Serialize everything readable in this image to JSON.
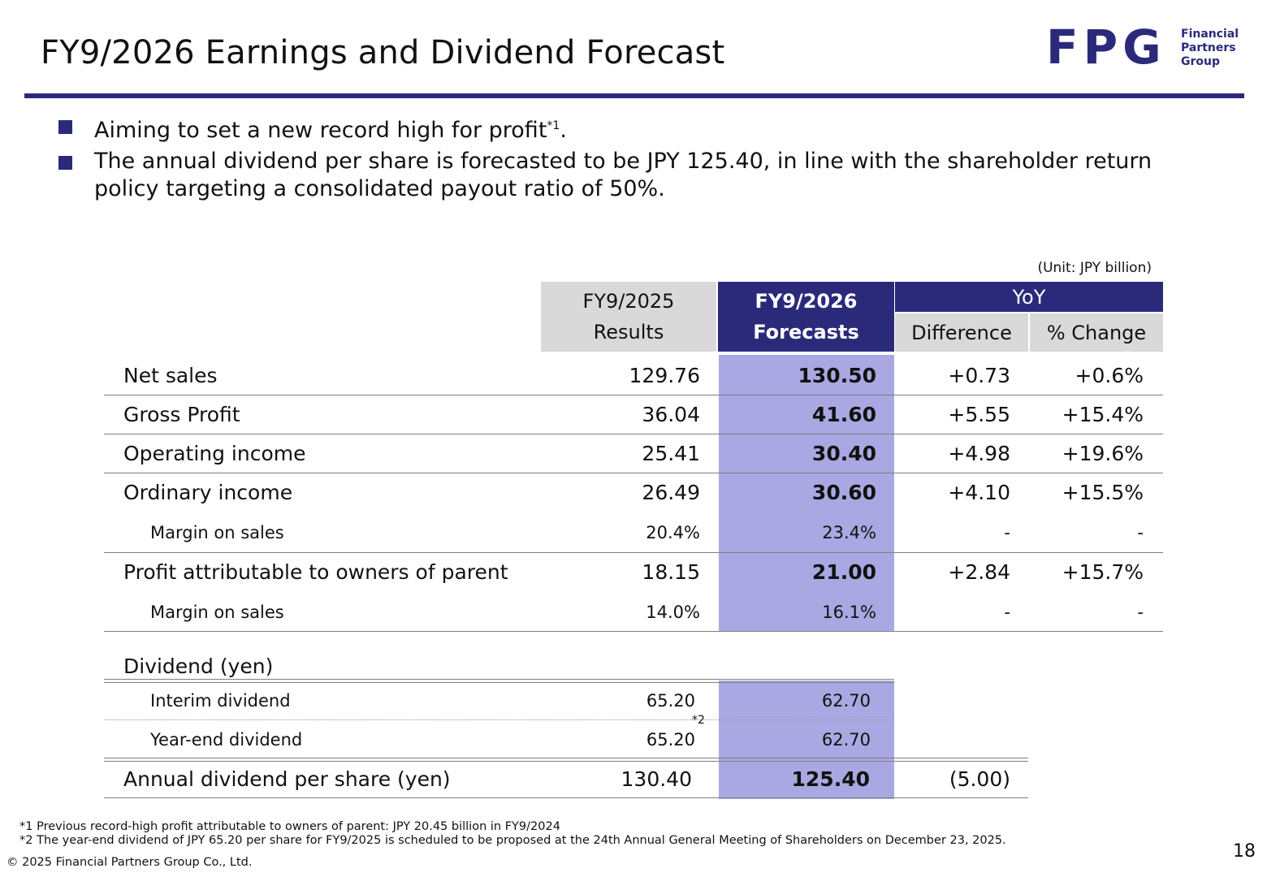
{
  "title": "FY9/2026 Earnings and Dividend Forecast",
  "logo": {
    "mark": "FPG",
    "text_line1": "Financial",
    "text_line2": "Partners",
    "text_line3": "Group"
  },
  "bullets": [
    {
      "text": "Aiming to set a new record high for profit",
      "sup": "*1",
      "tail": "."
    },
    {
      "text": "The annual dividend per share is forecasted to be JPY 125.40, in line with the shareholder return policy targeting a consolidated payout ratio of 50%."
    }
  ],
  "unit": "(Unit: JPY billion)",
  "headers": {
    "prev_line1": "FY9/2025",
    "prev_line2": "Results",
    "fcst_line1": "FY9/2026",
    "fcst_line2": "Forecasts",
    "yoy": "YoY",
    "diff": "Difference",
    "pct": "% Change"
  },
  "rows": [
    {
      "label": "Net sales",
      "prev": "129.76",
      "fcst": "130.50",
      "diff": "+0.73",
      "pct": "+0.6%"
    },
    {
      "label": "Gross Profit",
      "prev": "36.04",
      "fcst": "41.60",
      "diff": "+5.55",
      "pct": "+15.4%"
    },
    {
      "label": "Operating income",
      "prev": "25.41",
      "fcst": "30.40",
      "diff": "+4.98",
      "pct": "+19.6%"
    },
    {
      "label": "Ordinary income",
      "prev": "26.49",
      "fcst": "30.60",
      "diff": "+4.10",
      "pct": "+15.5%"
    },
    {
      "label": "Margin on sales",
      "prev": "20.4%",
      "fcst": "23.4%",
      "diff": "-",
      "pct": "-"
    },
    {
      "label": "Profit attributable to owners of parent",
      "prev": "18.15",
      "fcst": "21.00",
      "diff": "+2.84",
      "pct": "+15.7%"
    },
    {
      "label": "Margin on sales",
      "prev": "14.0%",
      "fcst": "16.1%",
      "diff": "-",
      "pct": "-"
    }
  ],
  "dividend": {
    "heading": "Dividend (yen)",
    "interim": {
      "label": "Interim dividend",
      "prev": "65.20",
      "fcst": "62.70"
    },
    "year_end": {
      "label": "Year-end dividend",
      "prev": "65.20",
      "sup": "*2",
      "fcst": "62.70"
    },
    "annual": {
      "label": "Annual dividend per share (yen)",
      "prev": "130.40",
      "fcst": "125.40",
      "diff": "(5.00)"
    }
  },
  "footnotes": [
    "*1 Previous record-high profit attributable to owners of parent: JPY 20.45 billion in FY9/2024",
    "*2 The year-end dividend of JPY 65.20 per share for FY9/2025 is scheduled to be proposed at the 24th Annual General Meeting of Shareholders on December 23, 2025."
  ],
  "copyright": "© 2025 Financial Partners Group Co., Ltd.",
  "page_number": "18",
  "colors": {
    "brand": "#2b2a7a",
    "forecast_column": "#a9a8e2",
    "header_gray": "#d9d9d9"
  }
}
